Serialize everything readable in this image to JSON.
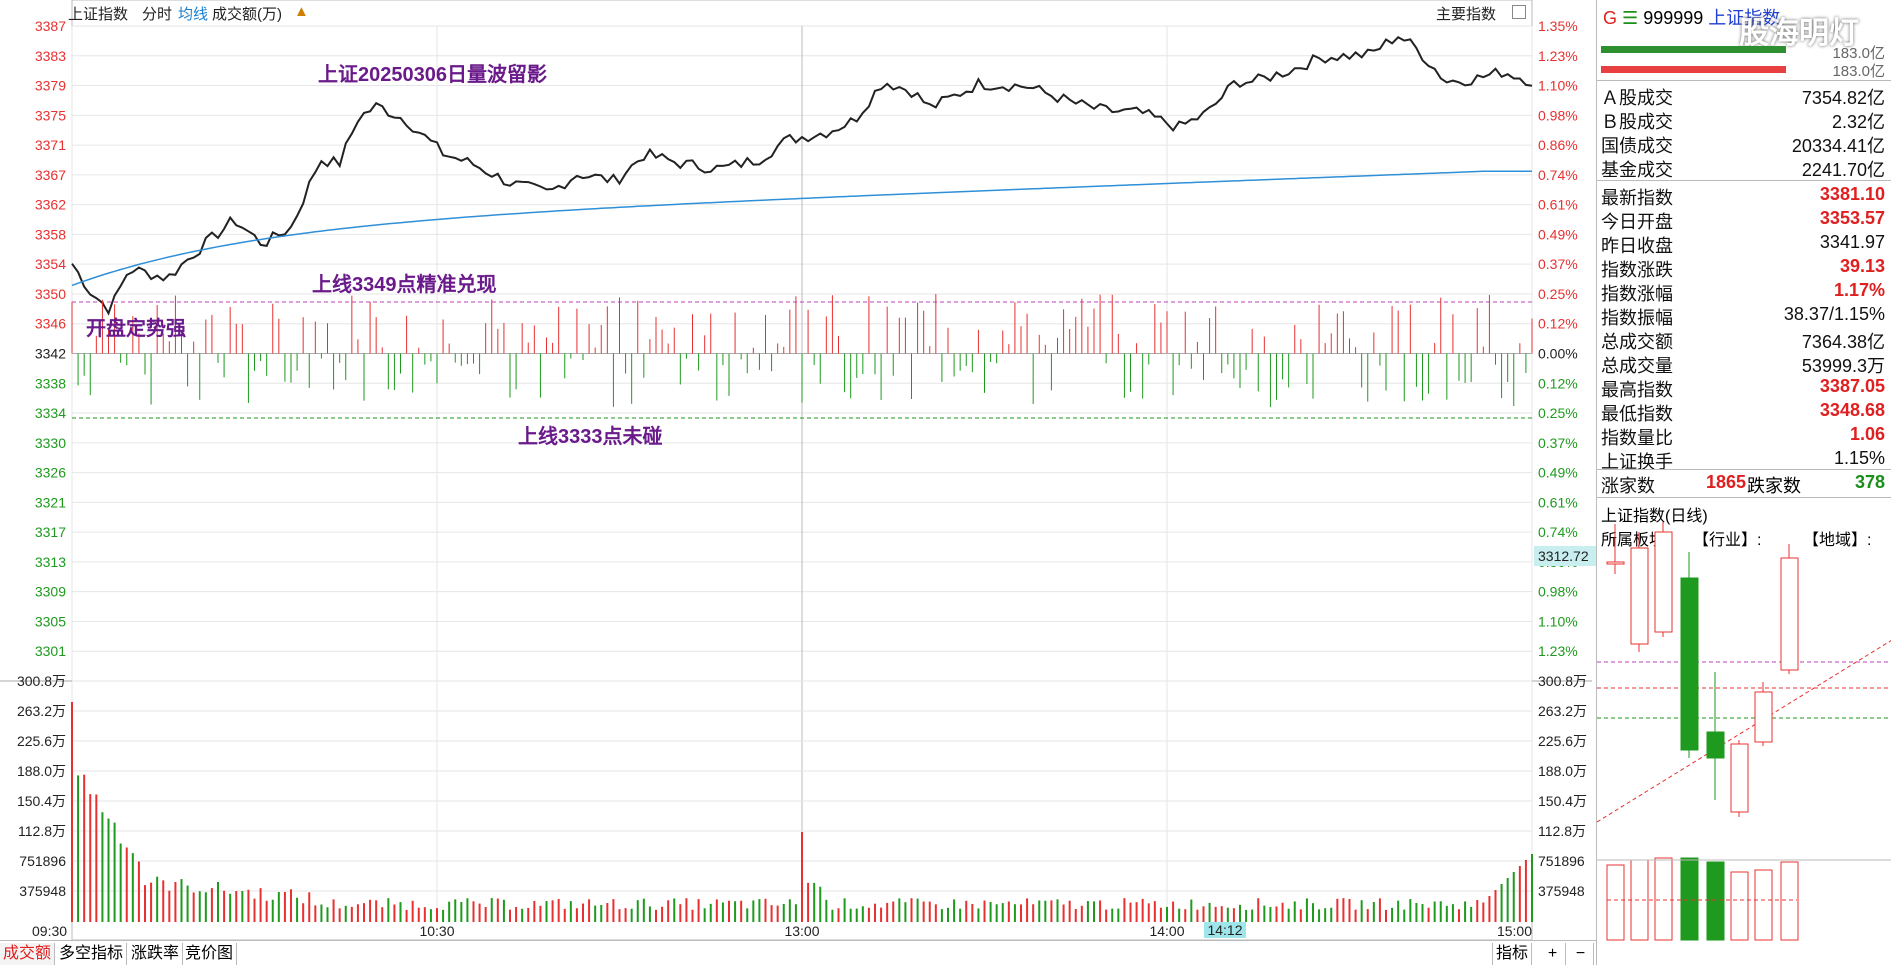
{
  "header": {
    "title": "上证指数",
    "tabs": [
      "分时",
      "均线",
      "成交额(万)"
    ],
    "right_label": "主要指数"
  },
  "annotations": {
    "title": "上证20250306日量波留影",
    "line1": "上线3349点精准兑现",
    "opening": "开盘定势强",
    "line2": "上线3333点未碰"
  },
  "price_axis": {
    "left": [
      "3387",
      "3383",
      "3379",
      "3375",
      "3371",
      "3367",
      "3362",
      "3358",
      "3354",
      "3350",
      "3346",
      "3342",
      "3338",
      "3334",
      "3330",
      "3326",
      "3321",
      "3317",
      "3313",
      "3309",
      "3305",
      "3301"
    ],
    "right": [
      "1.35%",
      "1.23%",
      "1.10%",
      "0.98%",
      "0.86%",
      "0.74%",
      "0.61%",
      "0.49%",
      "0.37%",
      "0.25%",
      "0.12%",
      "0.00%",
      "0.12%",
      "0.25%",
      "0.37%",
      "0.49%",
      "0.61%",
      "0.74%",
      "0.86%",
      "0.98%",
      "1.10%",
      "1.23%"
    ],
    "current_label": "3312.72"
  },
  "volume_axis": {
    "labels": [
      "300.8万",
      "263.2万",
      "225.6万",
      "188.0万",
      "150.4万",
      "112.8万",
      "751896",
      "375948"
    ]
  },
  "time_axis": {
    "labels": [
      "09:30",
      "10:30",
      "13:00",
      "14:00",
      "15:00"
    ],
    "cursor": "14:12"
  },
  "bottom_tabs": [
    "成交额",
    "多空指标",
    "涨跌率",
    "竞价图"
  ],
  "bottom_right": [
    "指标",
    "+",
    "−"
  ],
  "sidebar": {
    "code_prefix": "G",
    "code": "999999",
    "name": "上证指数",
    "watermark": "股海明灯",
    "bars_values": [
      "183.0亿",
      "183.0亿"
    ],
    "turnover": [
      {
        "k": "Ａ股成交",
        "v": "7354.82亿"
      },
      {
        "k": "Ｂ股成交",
        "v": "2.32亿"
      },
      {
        "k": "国债成交",
        "v": "20334.41亿"
      },
      {
        "k": "基金成交",
        "v": "2241.70亿"
      }
    ],
    "stats": [
      {
        "k": "最新指数",
        "v": "3381.10",
        "c": "red"
      },
      {
        "k": "今日开盘",
        "v": "3353.57",
        "c": "red"
      },
      {
        "k": "昨日收盘",
        "v": "3341.97",
        "c": "blk"
      },
      {
        "k": "指数涨跌",
        "v": "39.13",
        "c": "red"
      },
      {
        "k": "指数涨幅",
        "v": "1.17%",
        "c": "red"
      },
      {
        "k": "指数振幅",
        "v": "38.37/1.15%",
        "c": "blk"
      },
      {
        "k": "总成交额",
        "v": "7364.38亿",
        "c": "blk"
      },
      {
        "k": "总成交量",
        "v": "53999.3万",
        "c": "blk"
      },
      {
        "k": "最高指数",
        "v": "3387.05",
        "c": "red"
      },
      {
        "k": "最低指数",
        "v": "3348.68",
        "c": "red"
      },
      {
        "k": "指数量比",
        "v": "1.06",
        "c": "red"
      },
      {
        "k": "上证换手",
        "v": "1.15%",
        "c": "blk"
      }
    ],
    "up_label": "涨家数",
    "up": "1865",
    "down_label": "跌家数",
    "down": "378",
    "daily_title": "上证指数(日线)",
    "sector_label": "所属板块:",
    "industry": "【行业】:",
    "region": "【地域】:"
  },
  "colors": {
    "up": "#e83030",
    "down": "#1e9a1e",
    "price_line": "#222222",
    "avg_line": "#2f8fd8",
    "purple": "#c040c0"
  }
}
